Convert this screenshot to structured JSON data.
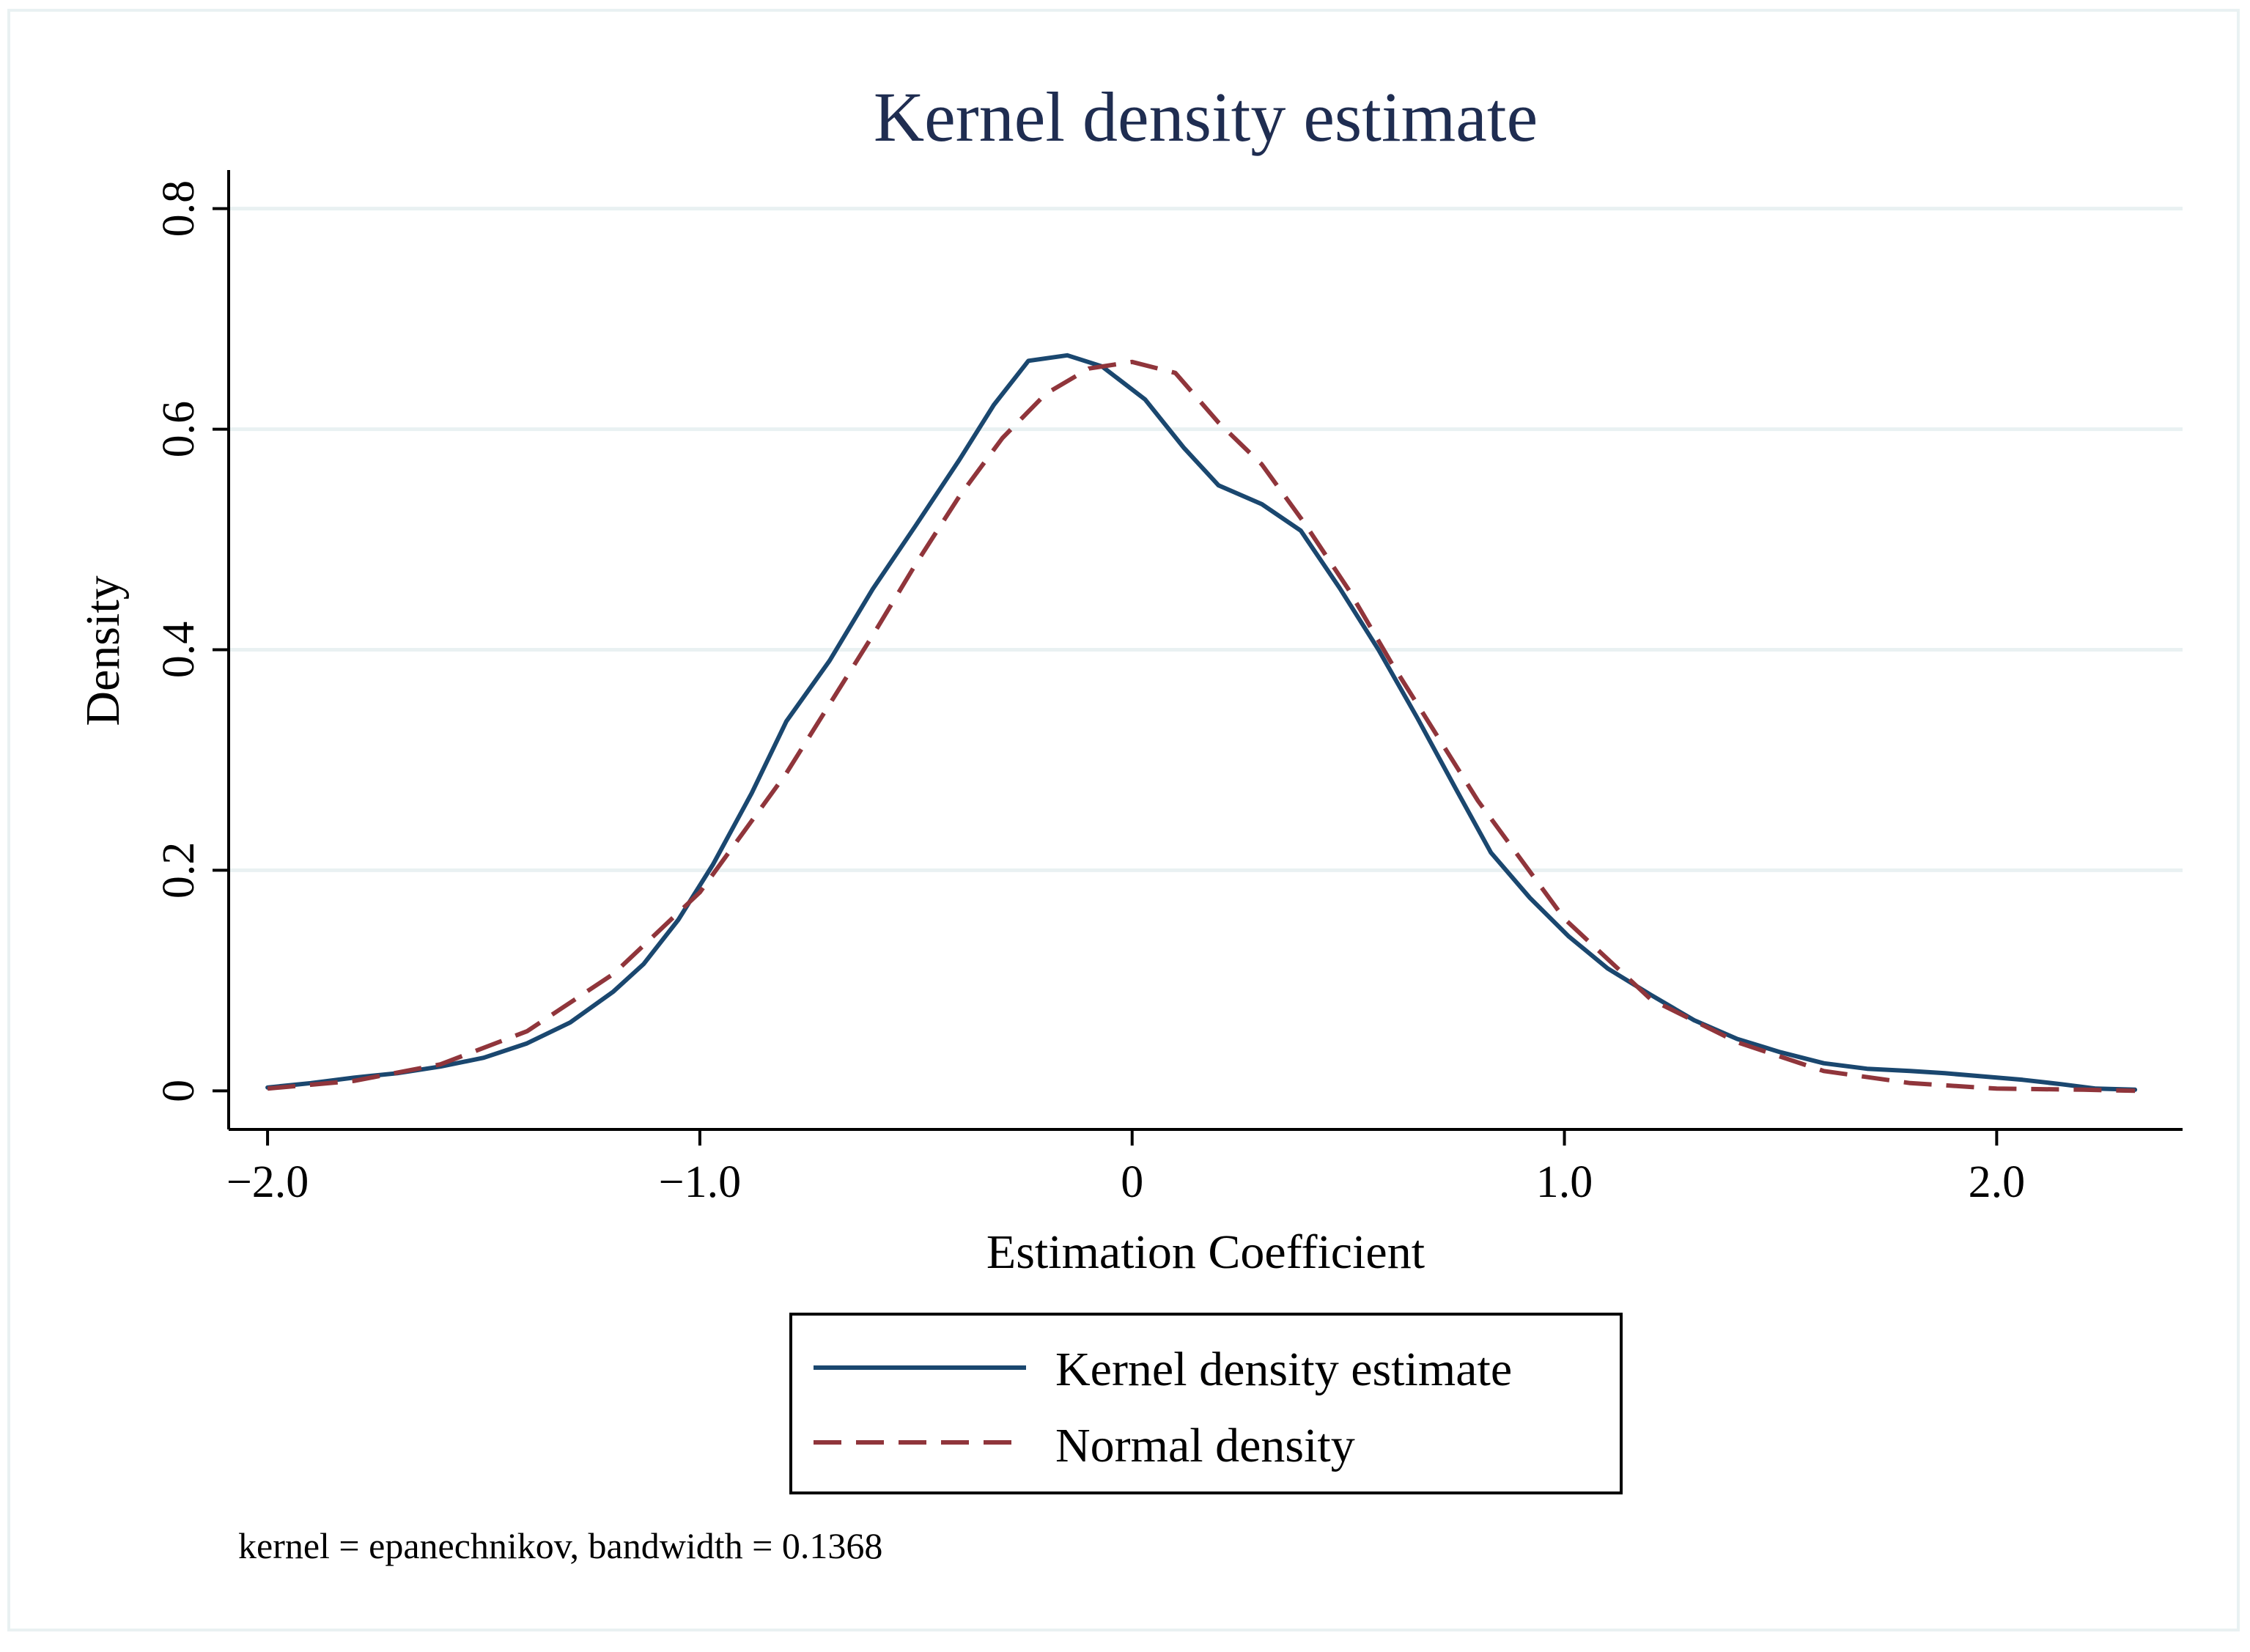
{
  "colors": {
    "title": "#1f2d51",
    "kernel": "#1a476f",
    "normal": "#90353b",
    "grid": "#e9f1f2",
    "axis": "#000000"
  },
  "chart_data": {
    "type": "line",
    "title": "Kernel density estimate",
    "xlabel": "Estimation Coefficient",
    "ylabel": "Density",
    "xlim": [
      -2.09,
      2.43
    ],
    "ylim": [
      -0.035,
      0.835
    ],
    "x_ticks": [
      -2.0,
      -1.0,
      0,
      1.0,
      2.0
    ],
    "x_tick_labels": [
      "−2.0",
      "−1.0",
      "0",
      "1.0",
      "2.0"
    ],
    "y_ticks": [
      0,
      0.2,
      0.4,
      0.6,
      0.8
    ],
    "y_tick_labels": [
      "0",
      "0.2",
      "0.4",
      "0.6",
      "0.8"
    ],
    "grid": "horizontal",
    "legend_position": "bottom-center",
    "note": "kernel = epanechnikov, bandwidth = 0.1368",
    "series": [
      {
        "name": "Kernel density estimate",
        "style": "solid",
        "x": [
          -2.0,
          -1.9,
          -1.8,
          -1.7,
          -1.6,
          -1.5,
          -1.4,
          -1.3,
          -1.2,
          -1.13,
          -1.05,
          -0.97,
          -0.88,
          -0.8,
          -0.7,
          -0.6,
          -0.5,
          -0.4,
          -0.32,
          -0.24,
          -0.15,
          -0.07,
          0.03,
          0.12,
          0.2,
          0.3,
          0.39,
          0.48,
          0.57,
          0.66,
          0.75,
          0.83,
          0.92,
          1.01,
          1.1,
          1.2,
          1.3,
          1.4,
          1.5,
          1.6,
          1.7,
          1.8,
          1.88,
          1.97,
          2.06,
          2.15,
          2.23,
          2.32
        ],
        "values": [
          0.003,
          0.007,
          0.012,
          0.016,
          0.022,
          0.03,
          0.043,
          0.062,
          0.09,
          0.115,
          0.155,
          0.205,
          0.27,
          0.335,
          0.39,
          0.455,
          0.513,
          0.572,
          0.622,
          0.662,
          0.667,
          0.657,
          0.627,
          0.583,
          0.549,
          0.532,
          0.508,
          0.456,
          0.4,
          0.338,
          0.273,
          0.216,
          0.175,
          0.14,
          0.111,
          0.087,
          0.064,
          0.047,
          0.035,
          0.025,
          0.02,
          0.018,
          0.016,
          0.013,
          0.01,
          0.006,
          0.002,
          0.001
        ]
      },
      {
        "name": "Normal density",
        "style": "dashed",
        "x": [
          -2.0,
          -1.8,
          -1.6,
          -1.4,
          -1.2,
          -1.0,
          -0.8,
          -0.6,
          -0.5,
          -0.4,
          -0.3,
          -0.2,
          -0.1,
          0.0,
          0.1,
          0.2,
          0.3,
          0.4,
          0.5,
          0.6,
          0.8,
          1.0,
          1.2,
          1.4,
          1.6,
          1.8,
          2.0,
          2.2,
          2.32
        ],
        "values": [
          0.002,
          0.009,
          0.024,
          0.054,
          0.106,
          0.18,
          0.288,
          0.413,
          0.478,
          0.539,
          0.592,
          0.632,
          0.655,
          0.661,
          0.651,
          0.606,
          0.568,
          0.514,
          0.455,
          0.388,
          0.263,
          0.156,
          0.083,
          0.044,
          0.018,
          0.007,
          0.002,
          0.001,
          0.0
        ]
      }
    ]
  }
}
